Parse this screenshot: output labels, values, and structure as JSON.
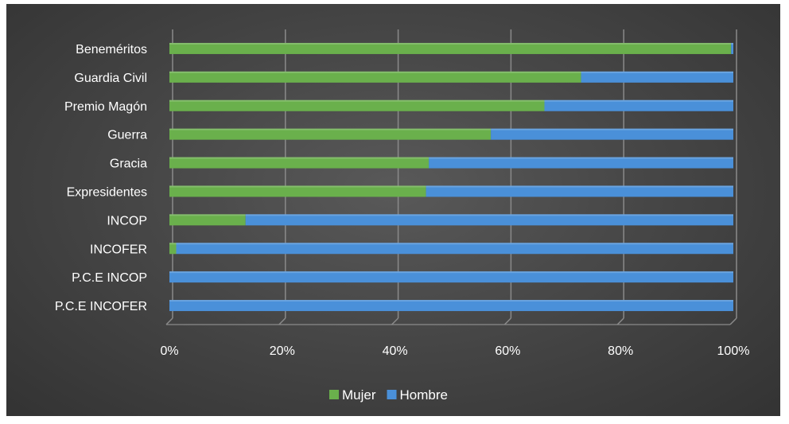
{
  "chart_data": {
    "type": "bar",
    "orientation": "horizontal",
    "stacked": "percent",
    "categories": [
      "Beneméritos",
      "Guardia Civil",
      "Premio Magón",
      "Guerra",
      "Gracia",
      "Expresidentes",
      "INCOP",
      "INCOFER",
      "P.C.E INCOP",
      "P.C.E INCOFER"
    ],
    "series": [
      {
        "name": "Mujer",
        "color": "#6ab04c",
        "values": [
          99.6,
          73,
          66.5,
          57,
          46,
          45.5,
          13.5,
          1.2,
          0,
          0
        ]
      },
      {
        "name": "Hombre",
        "color": "#4a90d9",
        "values": [
          0.4,
          27,
          33.5,
          43,
          54,
          54.5,
          86.5,
          98.8,
          100,
          100
        ]
      }
    ],
    "xlim": [
      0,
      100
    ],
    "x_ticks": [
      "0%",
      "20%",
      "40%",
      "60%",
      "80%",
      "100%"
    ],
    "grid": true,
    "legend_position": "bottom"
  }
}
